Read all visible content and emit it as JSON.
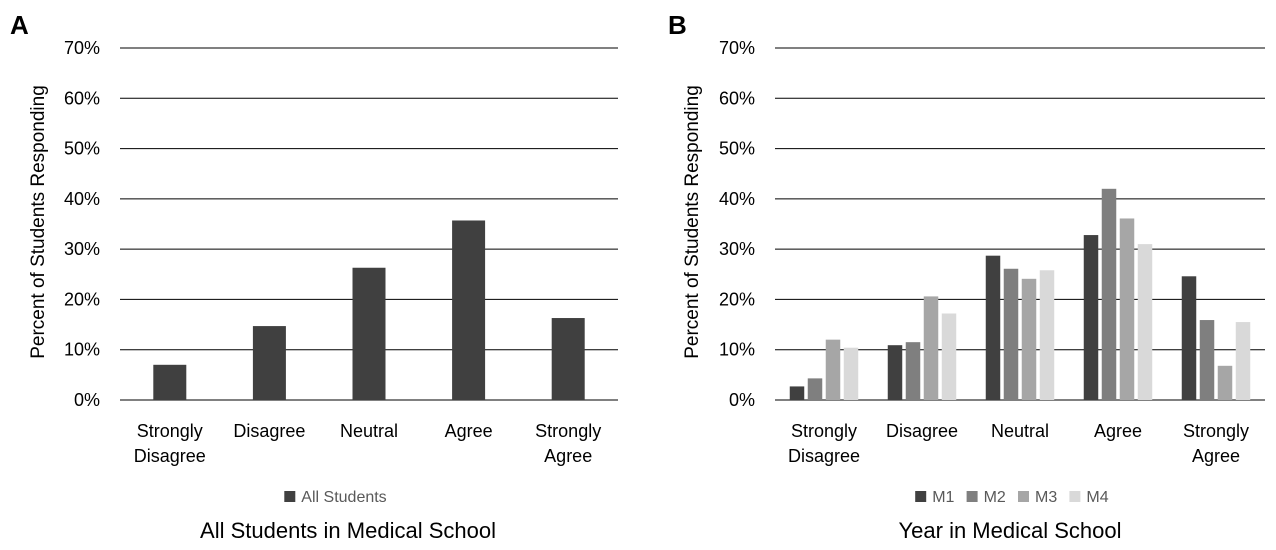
{
  "chart_data": [
    {
      "type": "bar",
      "panel_letter": "A",
      "ylabel": "Percent of Students Responding",
      "xlabel": "All Students in Medical School",
      "categories": [
        [
          "Strongly",
          "Disagree"
        ],
        [
          "Disagree"
        ],
        [
          "Neutral"
        ],
        [
          "Agree"
        ],
        [
          "Strongly",
          "Agree"
        ]
      ],
      "ylim": [
        0,
        70
      ],
      "yticks": [
        "0%",
        "10%",
        "20%",
        "30%",
        "40%",
        "50%",
        "60%",
        "70%"
      ],
      "grid": true,
      "legend_position": "bottom",
      "series": [
        {
          "name": "All Students",
          "color": "#404040",
          "values": [
            7,
            14.7,
            26.3,
            35.7,
            16.3
          ]
        }
      ]
    },
    {
      "type": "bar",
      "panel_letter": "B",
      "ylabel": "Percent of Students Responding",
      "xlabel": "Year in Medical School",
      "categories": [
        [
          "Strongly",
          "Disagree"
        ],
        [
          "Disagree"
        ],
        [
          "Neutral"
        ],
        [
          "Agree"
        ],
        [
          "Strongly",
          "Agree"
        ]
      ],
      "ylim": [
        0,
        70
      ],
      "yticks": [
        "0%",
        "10%",
        "20%",
        "30%",
        "40%",
        "50%",
        "60%",
        "70%"
      ],
      "grid": true,
      "legend_position": "bottom",
      "series": [
        {
          "name": "M1",
          "color": "#404040",
          "values": [
            2.7,
            10.9,
            28.7,
            32.8,
            24.6
          ]
        },
        {
          "name": "M2",
          "color": "#7f7f7f",
          "values": [
            4.3,
            11.5,
            26.1,
            42,
            15.9
          ]
        },
        {
          "name": "M3",
          "color": "#a6a6a6",
          "values": [
            12,
            20.6,
            24.1,
            36.1,
            6.8
          ]
        },
        {
          "name": "M4",
          "color": "#d9d9d9",
          "values": [
            10.4,
            17.2,
            25.8,
            31,
            15.5
          ]
        }
      ]
    }
  ]
}
